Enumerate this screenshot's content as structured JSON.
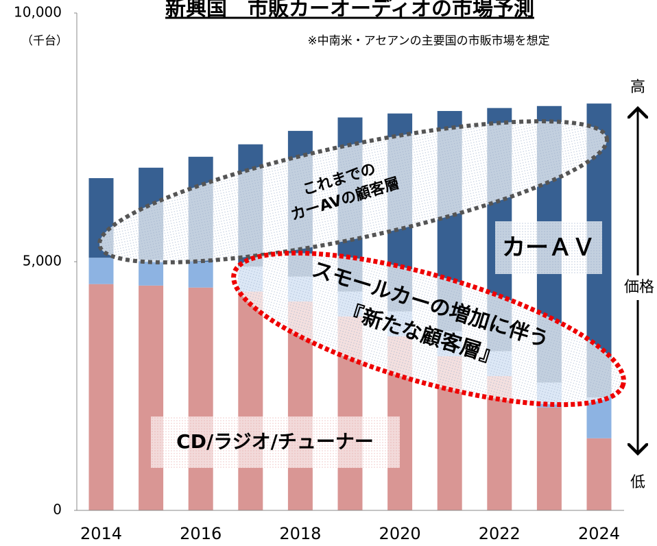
{
  "chart_data": {
    "type": "stacked_bar",
    "title": "新興国　市販カーオーディオの市場予測",
    "subtitle": "※中南米・アセアンの主要国の市販市場を想定",
    "y_label": "（千台）",
    "categories": [
      "2014",
      null,
      "2016",
      null,
      "2018",
      null,
      "2020",
      null,
      "2022",
      null,
      "2024"
    ],
    "series": [
      {
        "name": "CD/ラジオ/チューナー",
        "color": "#d99694",
        "values": [
          4550,
          4520,
          4480,
          4400,
          4200,
          3900,
          3500,
          3100,
          2700,
          2070,
          1450
        ]
      },
      {
        "color": "#8db3e2",
        "values": [
          530,
          520,
          520,
          500,
          500,
          500,
          500,
          500,
          500,
          500,
          820
        ]
      },
      {
        "name": "カーＡＶ",
        "color": "#376092",
        "values": [
          1600,
          1850,
          2110,
          2460,
          2930,
          3500,
          3980,
          4430,
          4890,
          5560,
          5910
        ]
      }
    ],
    "ylim": [
      0,
      10000
    ],
    "yticks": [
      0,
      {
        "value": 5000,
        "label": "5,000"
      },
      {
        "value": 10000,
        "label": "10,000"
      }
    ],
    "annotations": [
      [
        "これまでの",
        "カーAVの顧客層"
      ],
      [
        "スモールカーの増加に伴う",
        "『新たな顧客層』"
      ]
    ],
    "price_axis": {
      "high": "高",
      "label": "価格",
      "low": "低"
    }
  }
}
